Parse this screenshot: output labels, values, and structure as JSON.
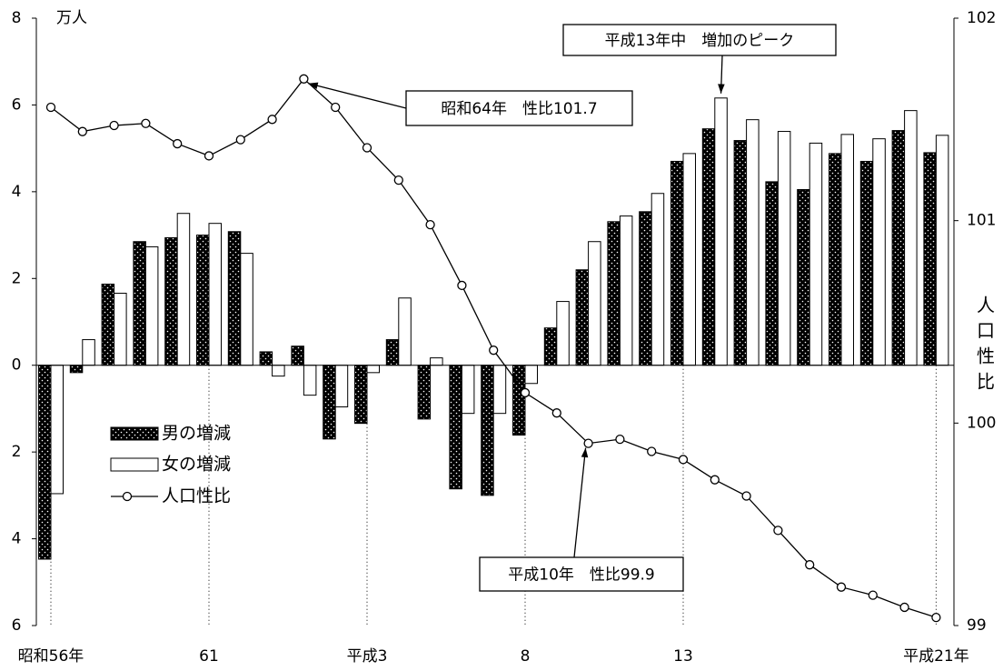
{
  "chart_data": {
    "type": "bar",
    "unit_label": "万人",
    "y2_label": "人口性比",
    "categories": [
      "昭和56年",
      null,
      null,
      null,
      null,
      "61",
      null,
      null,
      null,
      null,
      "平成3",
      null,
      null,
      null,
      null,
      "8",
      null,
      null,
      null,
      null,
      "13",
      null,
      null,
      null,
      null,
      null,
      null,
      null,
      "平成21年"
    ],
    "series": [
      {
        "name": "男の増減",
        "color": "#000000",
        "axis": "y",
        "values": [
          -4.47,
          -0.17,
          1.87,
          2.85,
          2.94,
          3.0,
          3.08,
          0.31,
          0.44,
          -1.7,
          -1.34,
          0.59,
          -1.24,
          -2.85,
          -3.0,
          -1.61,
          0.86,
          2.2,
          3.31,
          3.54,
          4.7,
          5.45,
          5.18,
          4.23,
          4.05,
          4.88,
          4.7,
          5.41,
          4.9
        ]
      },
      {
        "name": "女の増減",
        "color": "#ffffff",
        "axis": "y",
        "values": [
          -2.96,
          0.59,
          1.66,
          2.73,
          3.5,
          3.27,
          2.58,
          -0.25,
          -0.69,
          -0.96,
          -0.17,
          1.55,
          0.17,
          -1.11,
          -1.11,
          -0.42,
          1.47,
          2.85,
          3.44,
          3.96,
          4.88,
          6.16,
          5.66,
          5.39,
          5.12,
          5.32,
          5.22,
          5.87,
          5.3
        ]
      },
      {
        "name": "人口性比",
        "color": "#000000",
        "axis": "y2",
        "type": "line",
        "values": [
          101.56,
          101.44,
          101.47,
          101.48,
          101.38,
          101.32,
          101.4,
          101.5,
          101.7,
          101.56,
          101.36,
          101.2,
          100.98,
          100.68,
          100.36,
          100.15,
          100.05,
          99.9,
          99.92,
          99.86,
          99.82,
          99.72,
          99.64,
          99.47,
          99.3,
          99.19,
          99.15,
          99.09,
          99.04
        ]
      }
    ],
    "ylim": [
      -6,
      8
    ],
    "yticks": [
      {
        "value": -6,
        "label": "6"
      },
      {
        "value": -4,
        "label": "4"
      },
      {
        "value": -2,
        "label": "2"
      },
      0,
      2,
      4,
      6,
      8
    ],
    "y2lim": [
      99,
      102
    ],
    "y2ticks": [
      99,
      100,
      101,
      102
    ],
    "annotations": [
      {
        "text": "昭和64年　性比101.7",
        "series": 2,
        "index": 8
      },
      {
        "text": "平成13年中　増加のピーク",
        "series": 1,
        "index": 21
      },
      {
        "text": "平成10年　性比99.9",
        "series": 2,
        "index": 17
      }
    ]
  }
}
